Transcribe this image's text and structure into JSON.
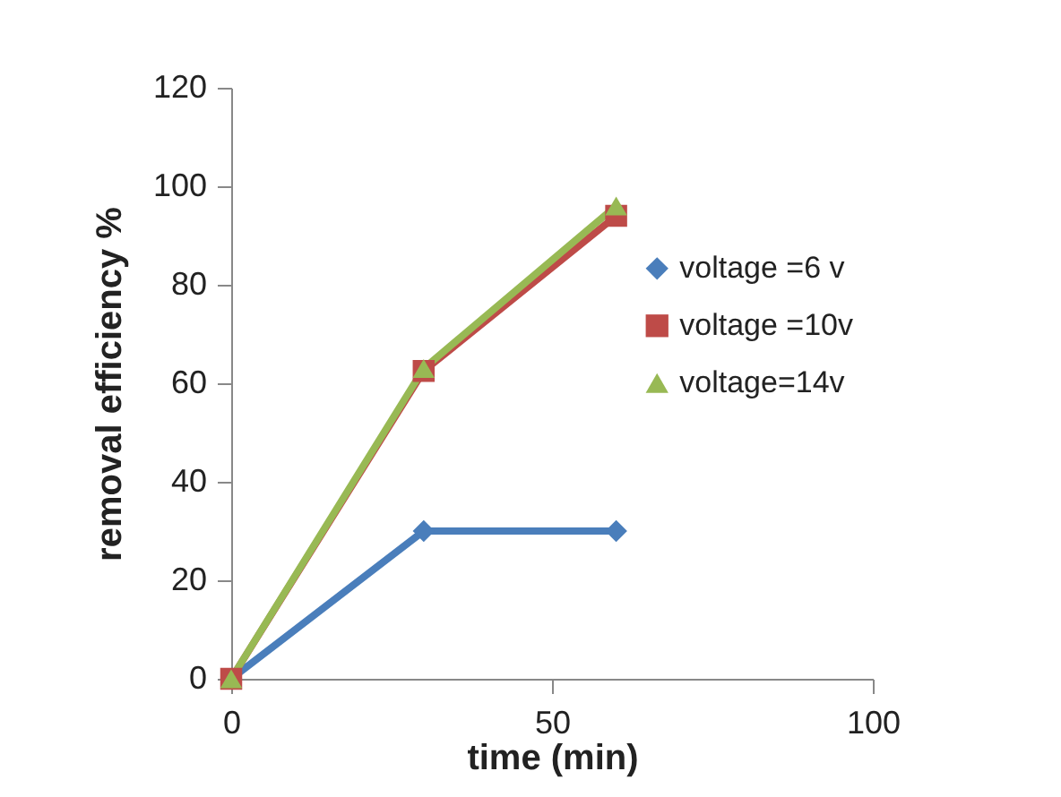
{
  "chart_data": {
    "type": "line",
    "xlabel": "time (min)",
    "ylabel": "removal efficiency %",
    "x": [
      0,
      30,
      60
    ],
    "series": [
      {
        "name": "voltage =6 v",
        "color": "#4a7ebb",
        "marker": "diamond",
        "values": [
          0,
          30,
          30
        ]
      },
      {
        "name": "voltage =10v",
        "color": "#be4b48",
        "marker": "square",
        "values": [
          0,
          62.5,
          94
        ]
      },
      {
        "name": "voltage=14v",
        "color": "#98b954",
        "marker": "triangle",
        "values": [
          0,
          63,
          96
        ]
      }
    ],
    "xlim": [
      0,
      100
    ],
    "xticks": [
      0,
      50,
      100
    ],
    "ylim": [
      0,
      120
    ],
    "yticks": [
      0,
      20,
      40,
      60,
      80,
      100,
      120
    ],
    "grid": false,
    "legend": "right",
    "line_style": "solid"
  }
}
